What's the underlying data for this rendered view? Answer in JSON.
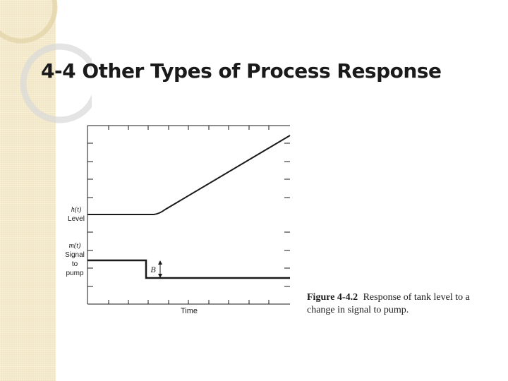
{
  "slide": {
    "title": "4-4 Other Types of Process Response"
  },
  "figure": {
    "number": "Figure 4-4.2",
    "caption": "Response of tank level to a change in signal to pump.",
    "xlabel": "Time",
    "level_label": {
      "symbol": "h(t)",
      "name": "Level"
    },
    "signal_label": {
      "symbol": "m(t)",
      "line1": "Signal",
      "line2": "to",
      "line3": "pump"
    },
    "step_marker": "B"
  },
  "colors": {
    "side_strip": "#f1e6c3",
    "deco_ring": "#e4d6ad",
    "line": "#1a1a1a"
  }
}
